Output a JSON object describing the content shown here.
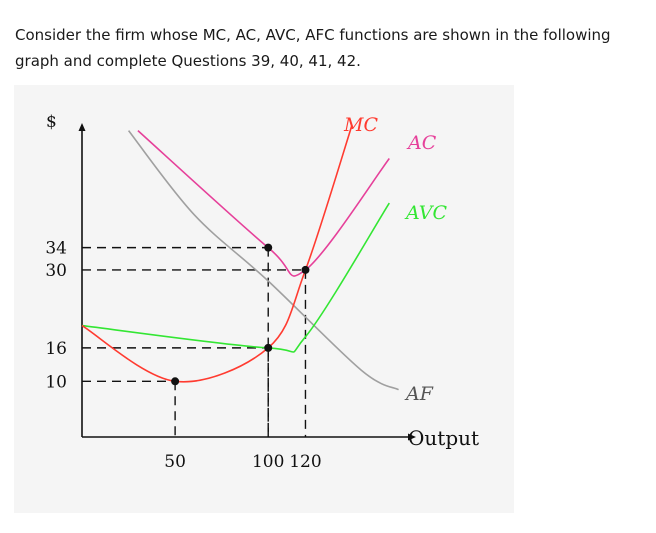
{
  "question_text": "Consider the firm whose MC, AC, AVC, AFC functions are shown in the following graph and complete Questions 39, 40, 41, 42.",
  "chart_data": {
    "type": "line",
    "xlabel": "Output",
    "ylabel": "$",
    "x_ticks": [
      "50",
      "100",
      "120"
    ],
    "y_ticks": [
      "10",
      "16",
      "30",
      "34"
    ],
    "series": [
      {
        "name": "MC",
        "color": "#ff3b30",
        "points": [
          [
            0,
            20
          ],
          [
            50,
            10
          ],
          [
            100,
            16
          ],
          [
            120,
            30
          ],
          [
            145,
            56
          ]
        ]
      },
      {
        "name": "AC",
        "color": "#e6409a",
        "points": [
          [
            30,
            55
          ],
          [
            100,
            34
          ],
          [
            120,
            30
          ],
          [
            165,
            50
          ]
        ]
      },
      {
        "name": "AVC",
        "color": "#33e633",
        "points": [
          [
            0,
            20
          ],
          [
            100,
            16
          ],
          [
            120,
            18
          ],
          [
            165,
            42
          ]
        ]
      },
      {
        "name": "AF",
        "color": "#a0a0a0",
        "points": [
          [
            25,
            55
          ],
          [
            60,
            40
          ],
          [
            100,
            28
          ],
          [
            150,
            12
          ],
          [
            170,
            8.5
          ]
        ]
      }
    ],
    "key_points": [
      {
        "x": 50,
        "y": 10
      },
      {
        "x": 100,
        "y": 16
      },
      {
        "x": 100,
        "y": 34
      },
      {
        "x": 120,
        "y": 30
      }
    ],
    "dashed_guides": true,
    "ylim": [
      0,
      60
    ],
    "xlim": [
      0,
      175
    ]
  }
}
